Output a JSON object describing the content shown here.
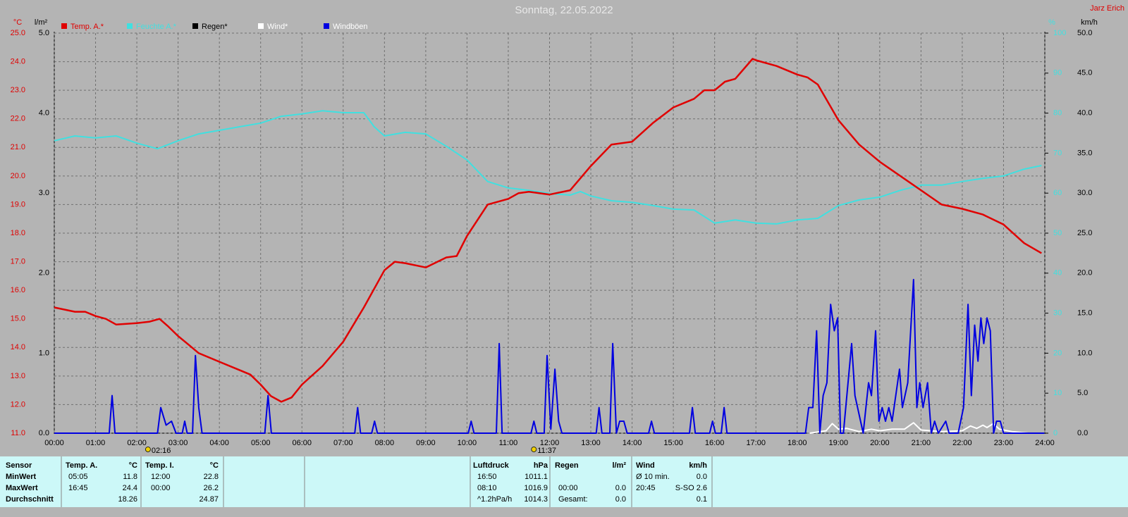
{
  "chart_data": {
    "type": "line",
    "title": "Sonntag, 22.05.2022",
    "author": "Jarz Erich",
    "ylabel": "°C",
    "y2label": "%",
    "y3label": "km/h",
    "y4label": "l/m²",
    "xlim": [
      0,
      24
    ],
    "xticks": [
      {
        "value": 0,
        "label": "00:00"
      },
      {
        "value": 1,
        "label": "01:00"
      },
      {
        "value": 2,
        "label": "02:00"
      },
      {
        "value": 3,
        "label": "03:00"
      },
      {
        "value": 4,
        "label": "04:00"
      },
      {
        "value": 5,
        "label": "05:00"
      },
      {
        "value": 6,
        "label": "06:00"
      },
      {
        "value": 7,
        "label": "07:00"
      },
      {
        "value": 8,
        "label": "08:00"
      },
      {
        "value": 9,
        "label": "09:00"
      },
      {
        "value": 10,
        "label": "10:00"
      },
      {
        "value": 11,
        "label": "11:00"
      },
      {
        "value": 12,
        "label": "12:00"
      },
      {
        "value": 13,
        "label": "13:00"
      },
      {
        "value": 14,
        "label": "14:00"
      },
      {
        "value": 15,
        "label": "15:00"
      },
      {
        "value": 16,
        "label": "16:00"
      },
      {
        "value": 17,
        "label": "17:00"
      },
      {
        "value": 18,
        "label": "18:00"
      },
      {
        "value": 19,
        "label": "19:00"
      },
      {
        "value": 20,
        "label": "20:00"
      },
      {
        "value": 21,
        "label": "21:00"
      },
      {
        "value": 22,
        "label": "22:00"
      },
      {
        "value": 23,
        "label": "23:00"
      },
      {
        "value": 24,
        "label": "24:00"
      }
    ],
    "ylim": [
      11,
      25
    ],
    "yticks": [
      {
        "value": 11,
        "label": "11.0"
      },
      {
        "value": 12,
        "label": "12.0"
      },
      {
        "value": 13,
        "label": "13.0"
      },
      {
        "value": 14,
        "label": "14.0"
      },
      {
        "value": 15,
        "label": "15.0"
      },
      {
        "value": 16,
        "label": "16.0"
      },
      {
        "value": 17,
        "label": "17.0"
      },
      {
        "value": 18,
        "label": "18.0"
      },
      {
        "value": 19,
        "label": "19.0"
      },
      {
        "value": 20,
        "label": "20.0"
      },
      {
        "value": 21,
        "label": "21.0"
      },
      {
        "value": 22,
        "label": "22.0"
      },
      {
        "value": 23,
        "label": "23.0"
      },
      {
        "value": 24,
        "label": "24.0"
      },
      {
        "value": 25,
        "label": "25.0"
      }
    ],
    "y2lim": [
      0,
      100
    ],
    "y2ticks": [
      0,
      10,
      20,
      30,
      40,
      50,
      60,
      70,
      80,
      90,
      100
    ],
    "y3lim": [
      0,
      50
    ],
    "y3ticks": [
      {
        "value": 0,
        "label": "0.0"
      },
      {
        "value": 5,
        "label": "5.0"
      },
      {
        "value": 10,
        "label": "10.0"
      },
      {
        "value": 15,
        "label": "15.0"
      },
      {
        "value": 20,
        "label": "20.0"
      },
      {
        "value": 25,
        "label": "25.0"
      },
      {
        "value": 30,
        "label": "30.0"
      },
      {
        "value": 35,
        "label": "35.0"
      },
      {
        "value": 40,
        "label": "40.0"
      },
      {
        "value": 45,
        "label": "45.0"
      },
      {
        "value": 50,
        "label": "50.0"
      }
    ],
    "y4lim": [
      0,
      5
    ],
    "y4ticks": [
      {
        "value": 0,
        "label": "0.0"
      },
      {
        "value": 1,
        "label": "1.0"
      },
      {
        "value": 2,
        "label": "2.0"
      },
      {
        "value": 3,
        "label": "3.0"
      },
      {
        "value": 4,
        "label": "4.0"
      },
      {
        "value": 5,
        "label": "5.0"
      }
    ],
    "grid": true,
    "series": [
      {
        "name": "Temp. A.*",
        "color": "#e00000",
        "axis": "y",
        "x": [
          0,
          0.5,
          0.75,
          1,
          1.25,
          1.5,
          2,
          2.3,
          2.55,
          2.75,
          3,
          3.25,
          3.5,
          4,
          4.5,
          4.75,
          5,
          5.25,
          5.5,
          5.75,
          6,
          6.5,
          7,
          7.5,
          8,
          8.25,
          8.5,
          9,
          9.5,
          9.75,
          10,
          10.5,
          11,
          11.25,
          11.5,
          12,
          12.5,
          13,
          13.5,
          14,
          14.5,
          15,
          15.5,
          15.75,
          16,
          16.25,
          16.5,
          16.92,
          17,
          17.5,
          18,
          18.25,
          18.5,
          19,
          19.5,
          20,
          20.5,
          21,
          21.5,
          22,
          22.5,
          23,
          23.5,
          23.92
        ],
        "values": [
          15.4,
          15.25,
          15.25,
          15.1,
          15.0,
          14.8,
          14.85,
          14.9,
          15.0,
          14.75,
          14.4,
          14.1,
          13.8,
          13.5,
          13.2,
          13.05,
          12.7,
          12.3,
          12.1,
          12.25,
          12.7,
          13.35,
          14.2,
          15.4,
          16.7,
          17.0,
          16.95,
          16.8,
          17.15,
          17.2,
          17.9,
          19.0,
          19.2,
          19.4,
          19.45,
          19.35,
          19.5,
          20.35,
          21.1,
          21.2,
          21.85,
          22.4,
          22.7,
          23.0,
          23.0,
          23.3,
          23.4,
          24.1,
          24.05,
          23.85,
          23.55,
          23.45,
          23.2,
          21.95,
          21.1,
          20.5,
          20.0,
          19.5,
          19.0,
          18.85,
          18.65,
          18.3,
          17.65,
          17.3
        ]
      },
      {
        "name": "Feuchte A.*",
        "color": "#40e0e0",
        "axis": "y2",
        "x": [
          0,
          0.5,
          1,
          1.5,
          2,
          2.5,
          3,
          3.5,
          4,
          4.5,
          5,
          5.5,
          6,
          6.5,
          7,
          7.5,
          7.75,
          8,
          8.5,
          9,
          9.5,
          10,
          10.5,
          11,
          11.5,
          12,
          12.5,
          12.75,
          13,
          13.5,
          14,
          14.5,
          15,
          15.5,
          16,
          16.5,
          17,
          17.5,
          18,
          18.5,
          19,
          19.5,
          20,
          20.5,
          21,
          21.5,
          22,
          22.5,
          23,
          23.5,
          23.92
        ],
        "values": [
          73.1,
          74.3,
          73.8,
          74.3,
          72.5,
          71.1,
          73.1,
          74.8,
          75.7,
          76.6,
          77.5,
          79.2,
          79.8,
          80.6,
          80.1,
          80.1,
          76.6,
          74.3,
          75.2,
          74.8,
          71.7,
          68.3,
          62.9,
          61.3,
          60.7,
          59.9,
          59.5,
          60.4,
          59.3,
          58.1,
          57.7,
          56.9,
          56.0,
          55.8,
          52.5,
          53.3,
          52.5,
          52.3,
          53.3,
          53.7,
          56.9,
          58.3,
          59.0,
          60.7,
          62.0,
          62.0,
          62.9,
          63.7,
          64.3,
          66.0,
          66.9
        ]
      },
      {
        "name": "Regen*",
        "color": "#000000",
        "axis": "y4",
        "x": [],
        "values": []
      },
      {
        "name": "Wind*",
        "color": "#ffffff",
        "axis": "y3",
        "x": [
          18.3,
          18.7,
          18.85,
          19.0,
          19.2,
          19.5,
          19.8,
          20.0,
          20.3,
          20.6,
          20.82,
          21.0,
          21.5,
          22.0,
          22.2,
          22.35,
          22.5,
          22.6,
          22.75,
          22.9,
          23.2,
          23.6
        ],
        "values": [
          0,
          0.3,
          1.2,
          0.5,
          0.6,
          0.2,
          0.5,
          0.3,
          0.5,
          0.5,
          1.3,
          0.4,
          0.2,
          0.3,
          0.9,
          0.6,
          1.0,
          0.7,
          1.2,
          0.5,
          0.2,
          0
        ]
      },
      {
        "name": "Windböen",
        "color": "#0000e0",
        "axis": "y3",
        "x": [
          0,
          1.33,
          1.4,
          1.47,
          2.5,
          2.58,
          2.71,
          2.84,
          2.95,
          3.1,
          3.16,
          3.22,
          3.35,
          3.42,
          3.5,
          3.58,
          5.1,
          5.18,
          5.26,
          7.28,
          7.35,
          7.42,
          7.69,
          7.76,
          7.83,
          10.03,
          10.1,
          10.17,
          10.71,
          10.78,
          10.85,
          11.55,
          11.62,
          11.69,
          11.87,
          11.94,
          12.03,
          12.13,
          12.22,
          12.3,
          13.13,
          13.2,
          13.27,
          13.46,
          13.53,
          13.62,
          13.7,
          13.8,
          13.88,
          14.4,
          14.47,
          14.54,
          15.39,
          15.46,
          15.53,
          15.88,
          15.95,
          16.02,
          16.16,
          16.23,
          16.3,
          18.2,
          18.28,
          18.38,
          18.47,
          18.55,
          18.63,
          18.72,
          18.81,
          18.9,
          18.98,
          19.05,
          19.12,
          19.32,
          19.4,
          19.6,
          19.73,
          19.8,
          19.9,
          19.98,
          20.06,
          20.14,
          20.22,
          20.3,
          20.48,
          20.55,
          20.68,
          20.82,
          20.9,
          20.97,
          21.05,
          21.16,
          21.25,
          21.33,
          21.42,
          21.6,
          21.68,
          21.9,
          22.03,
          22.14,
          22.22,
          22.3,
          22.38,
          22.45,
          22.52,
          22.6,
          22.68,
          22.76,
          22.83,
          22.92,
          23.0,
          23.99
        ],
        "values": [
          0,
          0,
          4.7,
          0,
          0,
          3.2,
          1.0,
          1.5,
          0,
          0,
          1.5,
          0,
          0,
          9.7,
          3.2,
          0,
          0,
          4.7,
          0,
          0,
          3.2,
          0,
          0,
          1.5,
          0,
          0,
          1.5,
          0,
          0,
          11.2,
          0,
          0,
          1.5,
          0,
          0,
          9.7,
          0.5,
          8.0,
          1.5,
          0,
          0,
          3.2,
          0,
          0,
          11.2,
          0,
          1.5,
          1.5,
          0,
          0,
          1.5,
          0,
          0,
          3.2,
          0,
          0,
          1.5,
          0,
          0,
          3.2,
          0,
          0,
          3.2,
          3.2,
          12.8,
          0,
          4.7,
          6.3,
          16.1,
          12.8,
          14.4,
          0,
          0,
          11.2,
          4.7,
          0,
          6.3,
          4.7,
          12.8,
          1.5,
          3.2,
          1.5,
          3.2,
          1.5,
          8.0,
          3.2,
          6.3,
          19.2,
          3.2,
          6.3,
          3.2,
          6.3,
          0,
          1.5,
          0,
          1.5,
          0,
          0,
          3.2,
          16.1,
          4.7,
          13.5,
          9.0,
          14.4,
          11.2,
          14.4,
          12.8,
          0,
          1.5,
          1.5,
          0,
          0
        ]
      }
    ],
    "annotations": [
      {
        "x": 2.27,
        "label": "02:16"
      },
      {
        "x": 11.62,
        "label": "11:37"
      }
    ]
  },
  "table": {
    "row_labels": [
      "Sensor",
      "MinWert",
      "MaxWert",
      "Durchschnitt"
    ],
    "columns": [
      {
        "header": "Temp. A.",
        "unit": "°C",
        "rows": [
          {
            "time": "05:05",
            "value": "11.8"
          },
          {
            "time": "16:45",
            "value": "24.4"
          },
          {
            "value": "18.26"
          }
        ]
      },
      {
        "header": "Temp. I.",
        "unit": "°C",
        "rows": [
          {
            "time": "12:00",
            "value": "22.8"
          },
          {
            "time": "00:00",
            "value": "26.2"
          },
          {
            "value": "24.87"
          }
        ]
      },
      {
        "header": "Luftdruck",
        "unit": "hPa",
        "rows": [
          {
            "time": "16:50",
            "value": "1011.1"
          },
          {
            "time": "08:10",
            "value": "1016.9"
          },
          {
            "time": "^1.2hPa/h",
            "value": "1014.3"
          }
        ]
      },
      {
        "header": "Regen",
        "unit": "l/m²",
        "rows": [
          null,
          {
            "time": "00:00",
            "value": "0.0"
          },
          {
            "time": "Gesamt:",
            "value": "0.0"
          }
        ]
      },
      {
        "header": "Wind",
        "unit": "km/h",
        "rows": [
          {
            "time": "Ø 10 min.",
            "value": "0.0"
          },
          {
            "time": "20:45",
            "value": "S-SO 2.6"
          },
          {
            "value": "0.1"
          }
        ]
      }
    ]
  }
}
